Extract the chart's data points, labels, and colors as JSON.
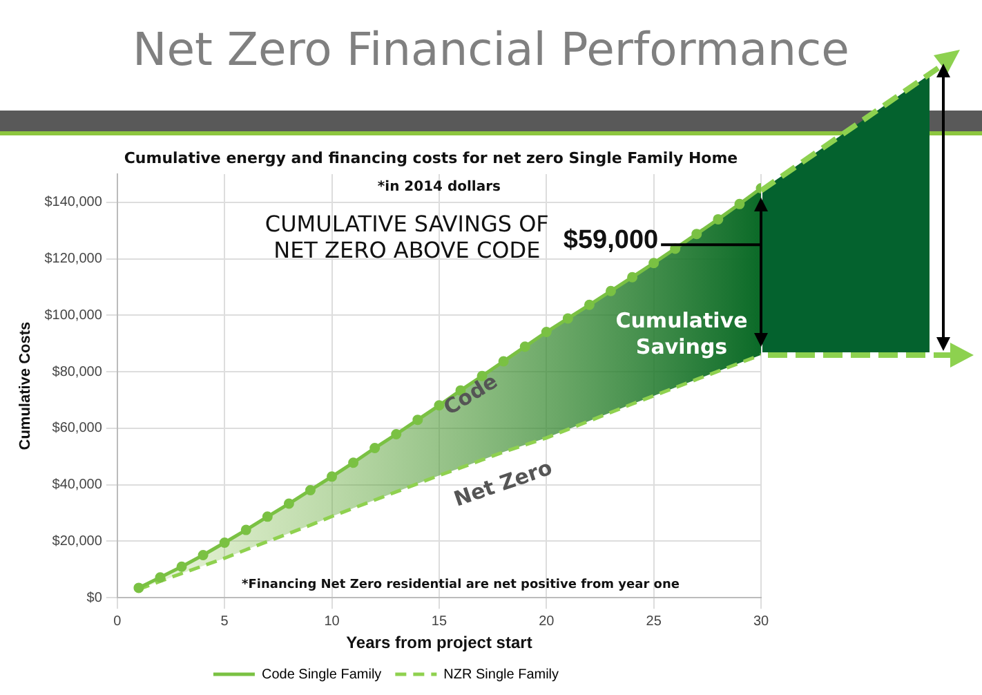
{
  "chart_data": {
    "type": "line",
    "title": "Net Zero Financial Performance",
    "subtitle": "Cumulative energy and financing costs for net zero Single Family Home",
    "xlabel": "Years from project start",
    "ylabel": "Cumulative Costs",
    "x": [
      1,
      2,
      3,
      4,
      5,
      6,
      7,
      8,
      9,
      10,
      11,
      12,
      13,
      14,
      15,
      16,
      17,
      18,
      19,
      20,
      21,
      22,
      23,
      24,
      25,
      26,
      27,
      28,
      29,
      30
    ],
    "series": [
      {
        "name": "Code Single Family",
        "color": "#7ac143",
        "marker": "circle",
        "line_style": "solid",
        "values": [
          3500,
          7200,
          11000,
          15100,
          19500,
          24000,
          28700,
          33300,
          38100,
          42900,
          47800,
          53000,
          57900,
          63000,
          68100,
          73400,
          78500,
          83700,
          88900,
          94100,
          98900,
          103700,
          108600,
          113500,
          118500,
          123600,
          128800,
          134000,
          139400,
          145000
        ],
        "lower": [
          3000,
          5800,
          8600,
          11300,
          14000,
          17000,
          19900,
          22800,
          25700,
          28800,
          31700,
          34600,
          37500,
          40400,
          43300,
          46000,
          48800,
          51600,
          54100,
          56600,
          59600,
          62600,
          65600,
          68600,
          71500,
          74400,
          77300,
          80200,
          83100,
          86000
        ],
        "upper": [
          3500,
          7200,
          11000,
          15100,
          19500,
          24000,
          28700,
          33300,
          38100,
          42900,
          47800,
          53000,
          57900,
          63000,
          68100,
          73400,
          78500,
          83700,
          88900,
          94100,
          98900,
          103700,
          108600,
          113500,
          118500,
          123600,
          128800,
          134000,
          139400,
          145000
        ]
      },
      {
        "name": "NZR Single Family",
        "color": "#8fd14f",
        "marker": "none",
        "line_style": "dashed",
        "values": [
          3000,
          5800,
          8600,
          11300,
          14000,
          17000,
          19900,
          22800,
          25700,
          28800,
          31700,
          34600,
          37500,
          40400,
          43300,
          46000,
          48800,
          51600,
          54100,
          56600,
          59600,
          62600,
          65600,
          68600,
          71500,
          74400,
          77300,
          80200,
          83100,
          86000
        ]
      }
    ],
    "xlim": [
      0,
      30
    ],
    "xticks": [
      0,
      5,
      10,
      15,
      20,
      25,
      30
    ],
    "ylim": [
      0,
      150000
    ],
    "yticks": [
      {
        "value": 0,
        "label": "$0"
      },
      {
        "value": 20000,
        "label": "$20,000"
      },
      {
        "value": 40000,
        "label": "$40,000"
      },
      {
        "value": 60000,
        "label": "$60,000"
      },
      {
        "value": 80000,
        "label": "$80,000"
      },
      {
        "value": 100000,
        "label": "$100,000"
      },
      {
        "value": 120000,
        "label": "$120,000"
      },
      {
        "value": 140000,
        "label": "$140,000"
      }
    ],
    "grid": true,
    "legend": "bottom",
    "annotations": [
      "*in 2014 dollars",
      "CUMULATIVE SAVINGS OF\nNET ZERO ABOVE CODE",
      {
        "text": "$59,000",
        "x": 30,
        "y": 125000
      },
      "Cumulative\nSavings",
      "Code",
      "Net Zero",
      "*Financing Net Zero residential are net positive from year one"
    ]
  }
}
